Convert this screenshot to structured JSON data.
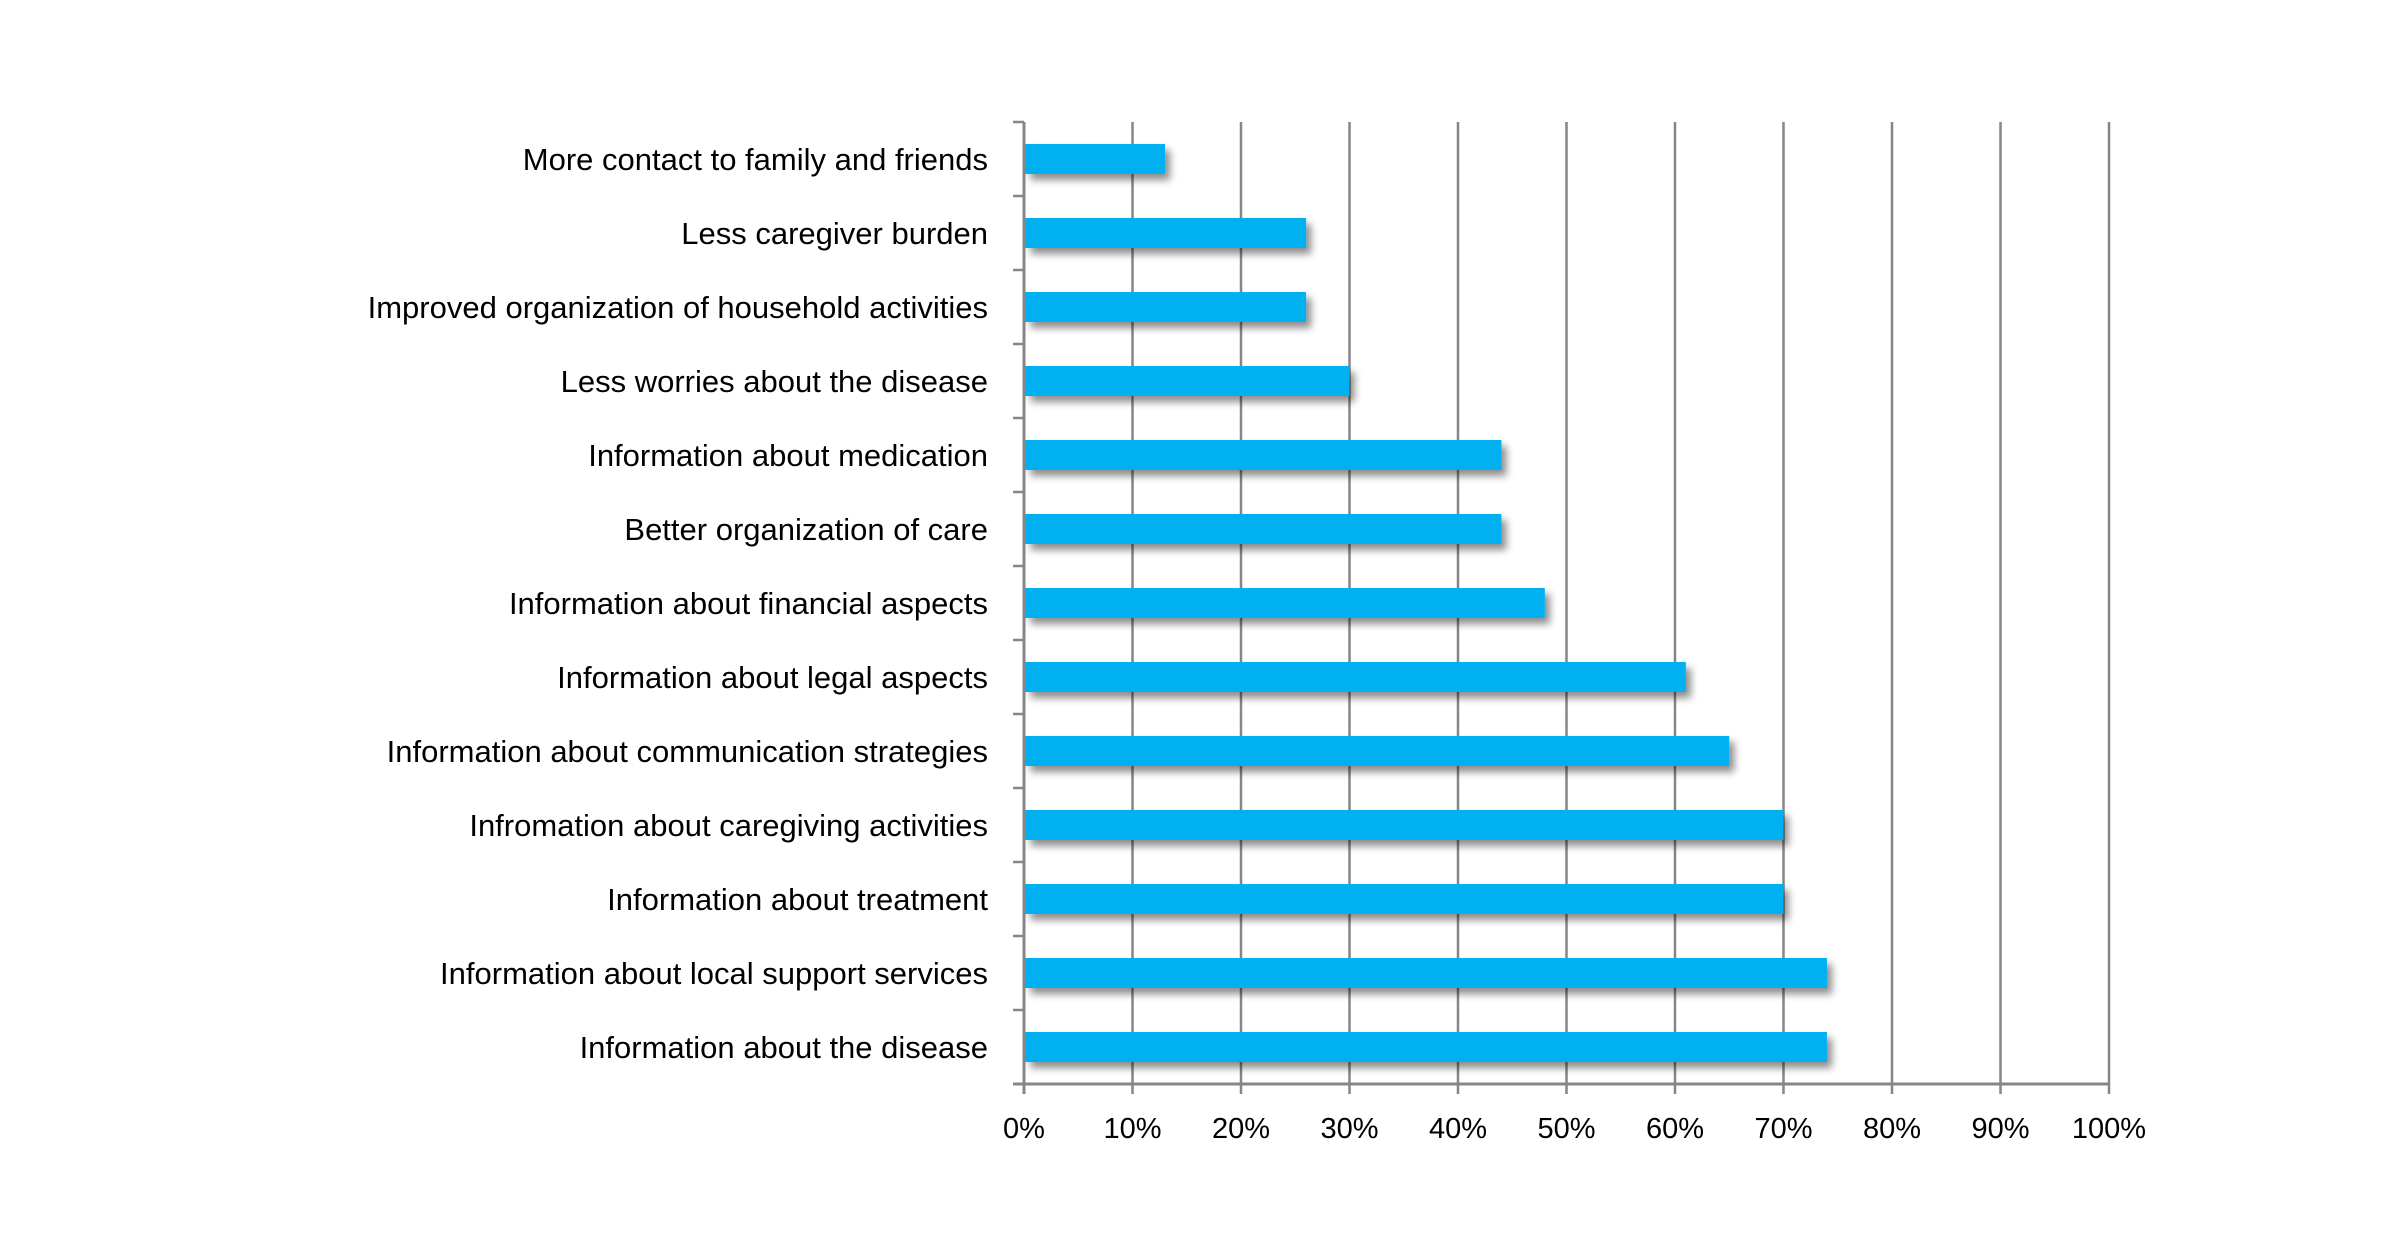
{
  "chart_data": {
    "type": "bar",
    "orientation": "horizontal",
    "title": "",
    "xlabel": "",
    "ylabel": "",
    "categories": [
      "More contact to family and friends",
      "Less caregiver burden",
      "Improved organization of household activities",
      "Less worries about the disease",
      "Information about medication",
      "Better organization of care",
      "Information about financial aspects",
      "Information about legal aspects",
      "Information about communication strategies",
      "Infromation about caregiving activities",
      "Information about treatment",
      "Information about local support services",
      "Information about the disease"
    ],
    "values": [
      13,
      26,
      26,
      30,
      44,
      44,
      48,
      61,
      65,
      70,
      70,
      74,
      74
    ],
    "value_unit": "%",
    "xlim": [
      0,
      100
    ],
    "x_ticks": [
      0,
      10,
      20,
      30,
      40,
      50,
      60,
      70,
      80,
      90,
      100
    ],
    "x_tick_labels": [
      "0%",
      "10%",
      "20%",
      "30%",
      "40%",
      "50%",
      "60%",
      "70%",
      "80%",
      "90%",
      "100%"
    ],
    "grid": "vertical",
    "legend": "none",
    "colors": {
      "bar": "#00b0f0",
      "grid": "#868686",
      "axis": "#868686",
      "text": "#000000"
    }
  }
}
